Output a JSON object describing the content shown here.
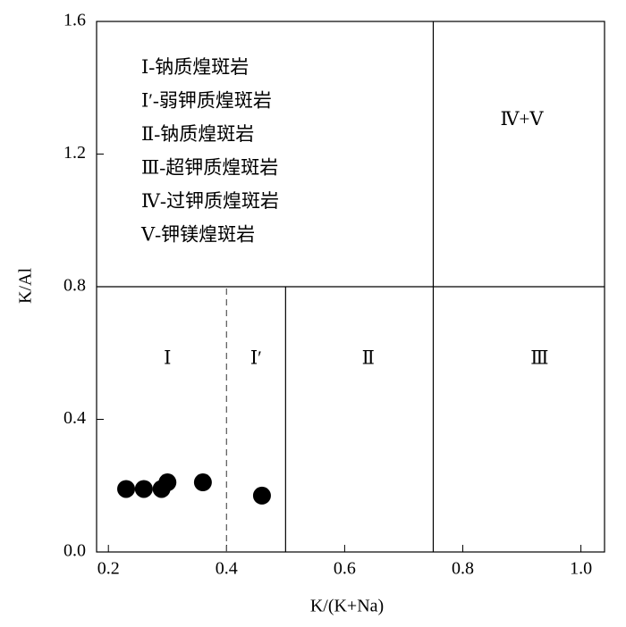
{
  "chart_data": {
    "type": "scatter",
    "x_label": "K/(K+Na)",
    "y_label": "K/Al",
    "xlim": [
      0.18,
      1.04
    ],
    "ylim": [
      0,
      1.6
    ],
    "xticks": [
      0.2,
      0.4,
      0.6,
      0.8,
      {
        "value": 1,
        "label": "1.0"
      }
    ],
    "yticks": [
      {
        "value": 0,
        "label": "0.0"
      },
      0.4,
      0.8,
      1.2,
      1.6
    ],
    "x": [
      0.23,
      0.26,
      0.29,
      0.3,
      0.36,
      0.46
    ],
    "values": [
      0.19,
      0.19,
      0.19,
      0.21,
      0.21,
      0.17
    ],
    "color": "#000000",
    "dividers": [
      {
        "x": [
          0.18,
          1.04
        ],
        "y": [
          0.8,
          0.8
        ],
        "style": "solid"
      },
      {
        "x": [
          0.75,
          0.75
        ],
        "y": [
          0,
          1.6
        ],
        "style": "solid"
      },
      {
        "x": [
          0.5,
          0.5
        ],
        "y": [
          0,
          0.8
        ],
        "style": "solid"
      },
      {
        "x": [
          0.4,
          0.4
        ],
        "y": [
          0,
          0.8
        ],
        "style": "dashed"
      }
    ],
    "annotations": [
      {
        "text": "Ⅰ",
        "x": 0.3,
        "y": 0.58
      },
      {
        "text": "Ⅰ′",
        "x": 0.45,
        "y": 0.58
      },
      {
        "text": "Ⅱ",
        "x": 0.64,
        "y": 0.58
      },
      {
        "text": "Ⅲ",
        "x": 0.93,
        "y": 0.58
      },
      {
        "text": "Ⅳ+Ⅴ",
        "x": 0.9,
        "y": 1.3
      }
    ],
    "legend_notes": [
      "Ⅰ-钠质煌斑岩",
      "Ⅰ′-弱钾质煌斑岩",
      "Ⅱ-钠质煌斑岩",
      "Ⅲ-超钾质煌斑岩",
      "Ⅳ-过钾质煌斑岩",
      "Ⅴ-钾镁煌斑岩"
    ]
  }
}
